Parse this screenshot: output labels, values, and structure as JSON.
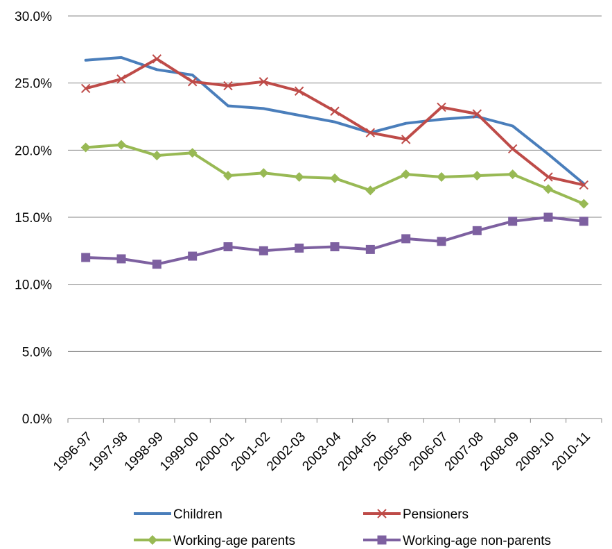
{
  "chart_data": {
    "type": "line",
    "title": "",
    "xlabel": "",
    "ylabel": "",
    "categories": [
      "1996-97",
      "1997-98",
      "1998-99",
      "1999-00",
      "2000-01",
      "2001-02",
      "2002-03",
      "2003-04",
      "2004-05",
      "2005-06",
      "2006-07",
      "2007-08",
      "2008-09",
      "2009-10",
      "2010-11"
    ],
    "ylim": [
      0,
      30
    ],
    "yticks": [
      "0.0%",
      "5.0%",
      "10.0%",
      "15.0%",
      "20.0%",
      "25.0%",
      "30.0%"
    ],
    "grid": "horizontal",
    "legend_position": "bottom",
    "series": [
      {
        "name": "Children",
        "color": "#4a7ebb",
        "marker": "none",
        "values": [
          26.7,
          26.9,
          26.0,
          25.6,
          23.3,
          23.1,
          22.6,
          22.1,
          21.3,
          22.0,
          22.3,
          22.5,
          21.8,
          19.7,
          17.5
        ]
      },
      {
        "name": "Pensioners",
        "color": "#be4b48",
        "marker": "x",
        "values": [
          24.6,
          25.3,
          26.8,
          25.1,
          24.8,
          25.1,
          24.4,
          22.9,
          21.3,
          20.8,
          23.2,
          22.7,
          20.1,
          18.0,
          17.4
        ]
      },
      {
        "name": "Working-age parents",
        "color": "#98b954",
        "marker": "diamond",
        "values": [
          20.2,
          20.4,
          19.6,
          19.8,
          18.1,
          18.3,
          18.0,
          17.9,
          17.0,
          18.2,
          18.0,
          18.1,
          18.2,
          17.1,
          16.0
        ]
      },
      {
        "name": "Working-age non-parents",
        "color": "#7d60a0",
        "marker": "square",
        "values": [
          12.0,
          11.9,
          11.5,
          12.1,
          12.8,
          12.5,
          12.7,
          12.8,
          12.6,
          13.4,
          13.2,
          14.0,
          14.7,
          15.0,
          14.7
        ]
      }
    ]
  }
}
